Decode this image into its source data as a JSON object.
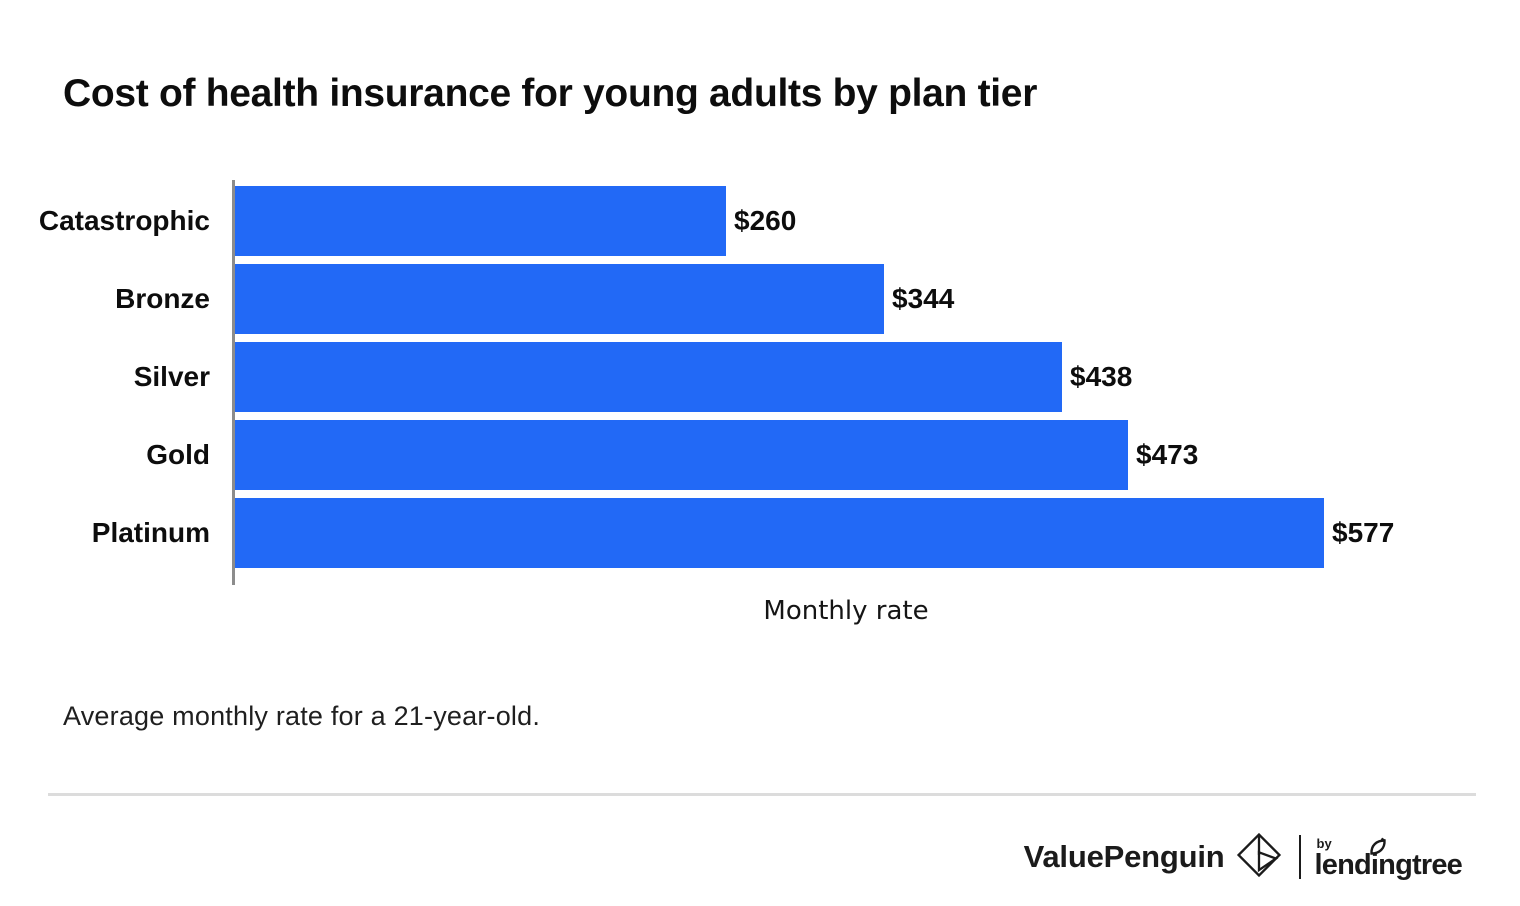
{
  "title": "Cost of health insurance for young adults by plan tier",
  "chart_data": {
    "type": "bar",
    "orientation": "horizontal",
    "categories": [
      "Catastrophic",
      "Bronze",
      "Silver",
      "Gold",
      "Platinum"
    ],
    "values": [
      260,
      344,
      438,
      473,
      577
    ],
    "value_labels": [
      "$260",
      "$344",
      "$438",
      "$473",
      "$577"
    ],
    "title": "Cost of health insurance for young adults by plan tier",
    "xlabel": "Monthly rate",
    "ylabel": "",
    "xlim": [
      0,
      577
    ],
    "grid": false,
    "legend": false,
    "bar_color": "#2269f6",
    "axis_color": "#8c8c8c"
  },
  "footnote": "Average monthly rate for a 21-year-old.",
  "footer": {
    "brand": "ValuePenguin",
    "by_label": "by",
    "partner": "lendingtree"
  }
}
